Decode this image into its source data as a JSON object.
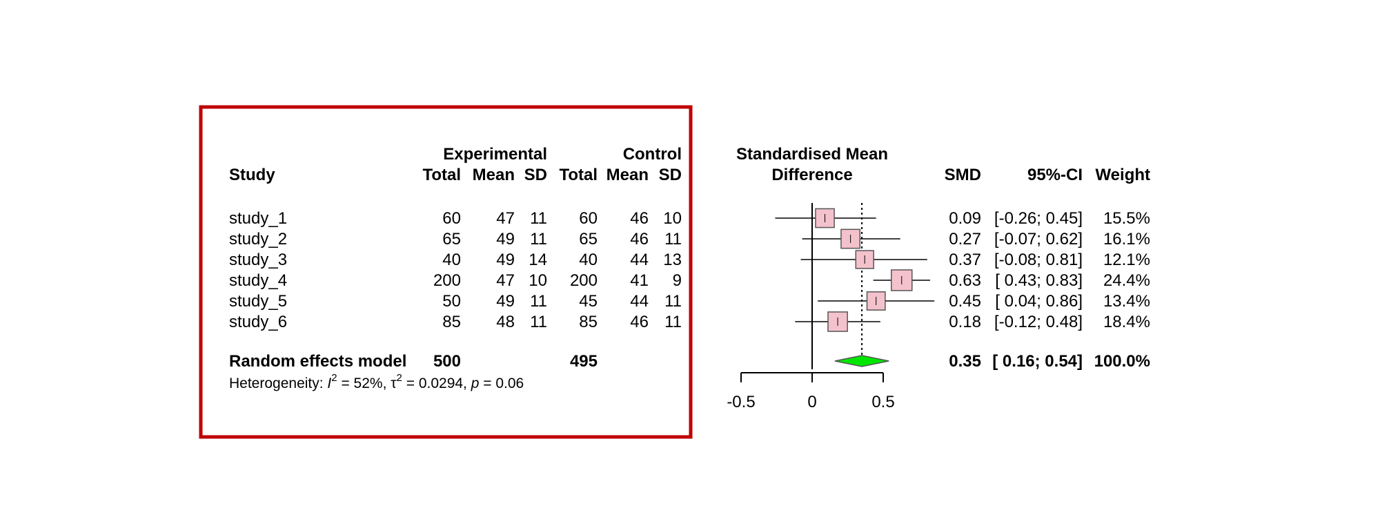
{
  "chart_data": {
    "type": "forest",
    "headers": {
      "study": "Study",
      "experimental": "Experimental",
      "control": "Control",
      "total": "Total",
      "mean": "Mean",
      "sd": "SD",
      "effect_line1": "Standardised Mean",
      "effect_line2": "Difference",
      "smd": "SMD",
      "ci": "95%-CI",
      "weight": "Weight"
    },
    "studies": [
      {
        "name": "study_1",
        "e_total": "60",
        "e_mean": "47",
        "e_sd": "11",
        "c_total": "60",
        "c_mean": "46",
        "c_sd": "10",
        "smd": 0.09,
        "lower": -0.26,
        "upper": 0.45,
        "smd_text": "0.09",
        "ci_text": "[-0.26; 0.45]",
        "weight_text": "15.5%",
        "weight": 15.5
      },
      {
        "name": "study_2",
        "e_total": "65",
        "e_mean": "49",
        "e_sd": "11",
        "c_total": "65",
        "c_mean": "46",
        "c_sd": "11",
        "smd": 0.27,
        "lower": -0.07,
        "upper": 0.62,
        "smd_text": "0.27",
        "ci_text": "[-0.07; 0.62]",
        "weight_text": "16.1%",
        "weight": 16.1
      },
      {
        "name": "study_3",
        "e_total": "40",
        "e_mean": "49",
        "e_sd": "14",
        "c_total": "40",
        "c_mean": "44",
        "c_sd": "13",
        "smd": 0.37,
        "lower": -0.08,
        "upper": 0.81,
        "smd_text": "0.37",
        "ci_text": "[-0.08; 0.81]",
        "weight_text": "12.1%",
        "weight": 12.1
      },
      {
        "name": "study_4",
        "e_total": "200",
        "e_mean": "47",
        "e_sd": "10",
        "c_total": "200",
        "c_mean": "41",
        "c_sd": "9",
        "smd": 0.63,
        "lower": 0.43,
        "upper": 0.83,
        "smd_text": "0.63",
        "ci_text": "[ 0.43; 0.83]",
        "weight_text": "24.4%",
        "weight": 24.4
      },
      {
        "name": "study_5",
        "e_total": "50",
        "e_mean": "49",
        "e_sd": "11",
        "c_total": "45",
        "c_mean": "44",
        "c_sd": "11",
        "smd": 0.45,
        "lower": 0.04,
        "upper": 0.86,
        "smd_text": "0.45",
        "ci_text": "[ 0.04; 0.86]",
        "weight_text": "13.4%",
        "weight": 13.4
      },
      {
        "name": "study_6",
        "e_total": "85",
        "e_mean": "48",
        "e_sd": "11",
        "c_total": "85",
        "c_mean": "46",
        "c_sd": "11",
        "smd": 0.18,
        "lower": -0.12,
        "upper": 0.48,
        "smd_text": "0.18",
        "ci_text": "[-0.12; 0.48]",
        "weight_text": "18.4%",
        "weight": 18.4
      }
    ],
    "pooled": {
      "label": "Random effects model",
      "e_total": "500",
      "c_total": "495",
      "smd": 0.35,
      "lower": 0.16,
      "upper": 0.54,
      "smd_text": "0.35",
      "ci_text": "[ 0.16; 0.54]",
      "weight_text": "100.0%"
    },
    "heterogeneity": {
      "prefix": "Heterogeneity: ",
      "i2_symbol": "I",
      "i2_exp": "2",
      "i2_value": " = 52%, ",
      "tau_symbol": "τ",
      "tau_exp": "2",
      "tau_value": " = 0.0294, ",
      "p_symbol": "p",
      "p_value": " = 0.06"
    },
    "x_axis": {
      "ticks": [
        -0.5,
        0,
        0.5
      ],
      "tick_labels": [
        "-0.5",
        "0",
        "0.5"
      ],
      "range": [
        -0.5,
        0.5
      ]
    },
    "colors": {
      "square_fill": "#f4c2cc",
      "diamond_fill": "#00e600",
      "highlight_box": "#c00000"
    }
  }
}
